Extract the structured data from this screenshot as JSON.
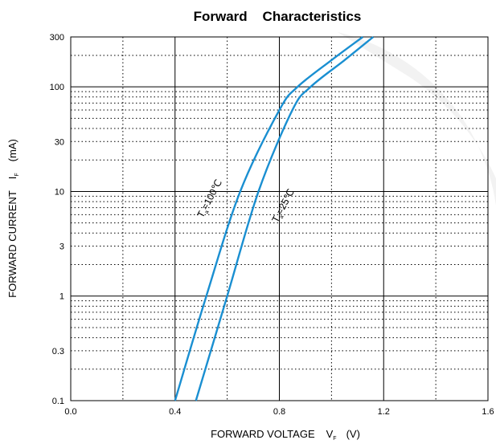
{
  "chart_data": {
    "type": "line",
    "title": "Forward    Characteristics",
    "xlabel": {
      "text": "FORWARD VOLTAGE",
      "symbol": "V",
      "subscript": "F",
      "unit": "(V)"
    },
    "ylabel": {
      "text": "FORWARD CURRENT",
      "symbol": "I",
      "subscript": "F",
      "unit": "(mA)"
    },
    "xlim": [
      0.0,
      1.6
    ],
    "ylim": [
      0.1,
      300
    ],
    "y_scale": "log",
    "grid": true,
    "x_ticks": [
      {
        "value": 0.0,
        "label": "0.0"
      },
      {
        "value": 0.4,
        "label": "0.4"
      },
      {
        "value": 0.8,
        "label": "0.8"
      },
      {
        "value": 1.2,
        "label": "1.2"
      },
      {
        "value": 1.6,
        "label": "1.6"
      }
    ],
    "y_ticks": [
      {
        "value": 0.1,
        "label": "0.1"
      },
      {
        "value": 0.3,
        "label": "0.3"
      },
      {
        "value": 1,
        "label": "1"
      },
      {
        "value": 3,
        "label": "3"
      },
      {
        "value": 10,
        "label": "10"
      },
      {
        "value": 30,
        "label": "30"
      },
      {
        "value": 100,
        "label": "100"
      },
      {
        "value": 300,
        "label": "300"
      }
    ],
    "series": [
      {
        "label": {
          "prefix": "T",
          "subscript": "a",
          "suffix": "=100℃"
        },
        "color": "#1a8fd1",
        "points": [
          [
            0.4,
            0.1
          ],
          [
            0.52,
            1
          ],
          [
            0.65,
            10
          ],
          [
            0.8,
            60
          ],
          [
            0.87,
            100
          ],
          [
            1.0,
            180
          ],
          [
            1.12,
            300
          ]
        ]
      },
      {
        "label": {
          "prefix": "T",
          "subscript": "a",
          "suffix": "=25℃"
        },
        "color": "#1a8fd1",
        "points": [
          [
            0.48,
            0.1
          ],
          [
            0.6,
            1
          ],
          [
            0.72,
            10
          ],
          [
            0.85,
            60
          ],
          [
            0.92,
            100
          ],
          [
            1.05,
            180
          ],
          [
            1.16,
            300
          ]
        ]
      }
    ],
    "colors": {
      "curve": "#1a8fd1",
      "grid": "#000000",
      "background": "#ffffff",
      "watermark": "#f2f2f2"
    }
  }
}
